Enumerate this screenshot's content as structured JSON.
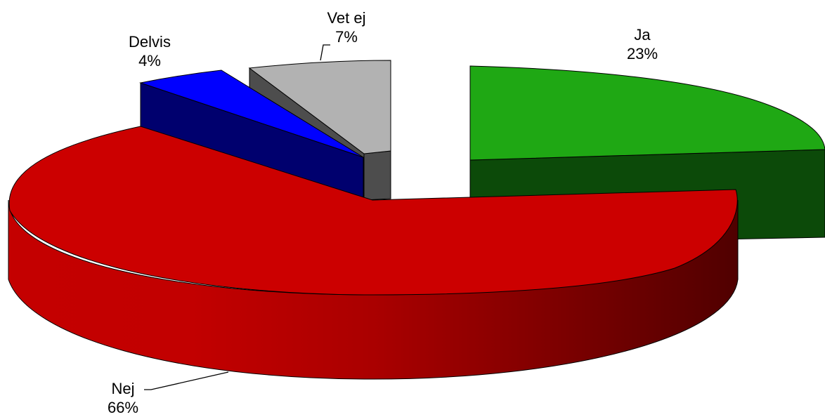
{
  "chart_data": {
    "type": "pie",
    "style": "3d-exploded",
    "slices": [
      {
        "label": "Ja",
        "value": 23,
        "value_label": "23%",
        "color": "#1fa814",
        "side_color": "#0c4a09"
      },
      {
        "label": "Nej",
        "value": 66,
        "value_label": "66%",
        "color": "#cc0000",
        "side_color": "#990000"
      },
      {
        "label": "Delvis",
        "value": 4,
        "value_label": "4%",
        "color": "#0000ff",
        "side_color": "#00006e"
      },
      {
        "label": "Vet ej",
        "value": 7,
        "value_label": "7%",
        "color": "#b2b2b2",
        "side_color": "#4d4d4d"
      }
    ]
  }
}
